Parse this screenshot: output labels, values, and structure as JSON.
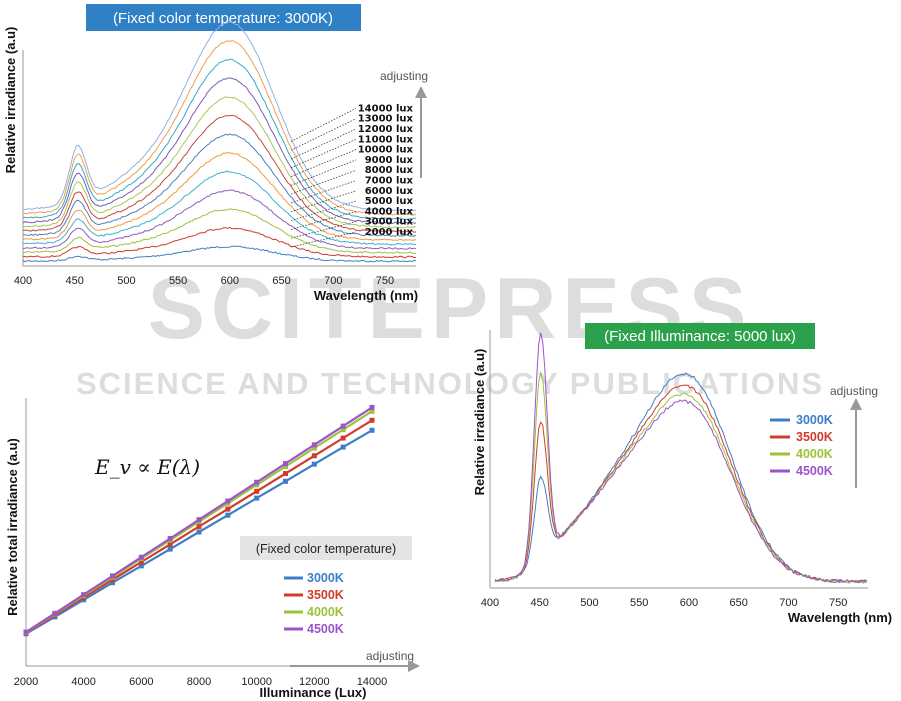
{
  "watermark": {
    "line1": "SCITEPRESS",
    "line2": "SCIENCE AND TECHNOLOGY PUBLICATIONS"
  },
  "colors": {
    "3000K": "#3c7fc7",
    "3500K": "#d03b2c",
    "4000K": "#9cc23a",
    "4500K": "#9b55c8",
    "banner_blue": "#2f80c5",
    "banner_green": "#2ca14c"
  },
  "icons": {
    "adjusting_arrow": "up-arrow-icon / right-arrow-icon"
  },
  "chart_data": [
    {
      "type": "line",
      "title": "(Fixed color temperature: 3000K)",
      "xlabel": "Wavelength (nm)",
      "ylabel": "Relative irradiance (a.u)",
      "xlim": [
        400,
        780
      ],
      "x_ticks": [
        "400",
        "450",
        "500",
        "550",
        "600",
        "650",
        "700",
        "750"
      ],
      "annotation": "adjusting",
      "series": [
        {
          "name": "2000 lux",
          "peak": 1
        },
        {
          "name": "3000 lux",
          "peak": 2
        },
        {
          "name": "4000 lux",
          "peak": 3
        },
        {
          "name": "5000 lux",
          "peak": 4
        },
        {
          "name": "6000 lux",
          "peak": 5
        },
        {
          "name": "7000 lux",
          "peak": 6
        },
        {
          "name": "8000 lux",
          "peak": 7
        },
        {
          "name": "9000 lux",
          "peak": 8
        },
        {
          "name": "10000 lux",
          "peak": 9
        },
        {
          "name": "11000 lux",
          "peak": 10
        },
        {
          "name": "12000 lux",
          "peak": 11
        },
        {
          "name": "13000 lux",
          "peak": 12
        },
        {
          "name": "14000 lux",
          "peak": 13
        }
      ],
      "grid": false
    },
    {
      "type": "line",
      "title": "",
      "xlabel": "Illuminance (Lux)",
      "ylabel": "Relative total irradiance (a.u)",
      "xlim": [
        2000,
        14000
      ],
      "x_ticks": [
        "2000",
        "4000",
        "6000",
        "8000",
        "10000",
        "12000",
        "14000"
      ],
      "annotation": "adjusting",
      "equation": "E_v ∝ E(λ)",
      "box_label": "(Fixed color temperature)",
      "x": [
        2000,
        3000,
        4000,
        5000,
        6000,
        7000,
        8000,
        9000,
        10000,
        11000,
        12000,
        13000,
        14000
      ],
      "series": [
        {
          "name": "3000K",
          "values": [
            1.0,
            1.52,
            2.05,
            2.58,
            3.1,
            3.62,
            4.15,
            4.67,
            5.2,
            5.72,
            6.25,
            6.78,
            7.3
          ]
        },
        {
          "name": "3500K",
          "values": [
            1.02,
            1.57,
            2.12,
            2.67,
            3.22,
            3.77,
            4.32,
            4.86,
            5.41,
            5.96,
            6.51,
            7.06,
            7.61
          ]
        },
        {
          "name": "4000K",
          "values": [
            1.04,
            1.61,
            2.18,
            2.75,
            3.33,
            3.9,
            4.47,
            5.04,
            5.61,
            6.18,
            6.75,
            7.32,
            7.89
          ]
        },
        {
          "name": "4500K",
          "values": [
            1.05,
            1.63,
            2.21,
            2.79,
            3.37,
            3.95,
            4.53,
            5.11,
            5.69,
            6.27,
            6.85,
            7.43,
            8.01
          ]
        }
      ],
      "grid": false
    },
    {
      "type": "line",
      "title": "(Fixed Illuminance: 5000 lux)",
      "xlabel": "Wavelength (nm)",
      "ylabel": "Relative irradiance (a.u)",
      "xlim": [
        400,
        780
      ],
      "x_ticks": [
        "400",
        "450",
        "500",
        "550",
        "600",
        "650",
        "700",
        "750"
      ],
      "annotation": "adjusting",
      "series": [
        {
          "name": "3000K",
          "blue_peak": 0.36,
          "red_peak": 0.86
        },
        {
          "name": "3500K",
          "blue_peak": 0.6,
          "red_peak": 0.81
        },
        {
          "name": "4000K",
          "blue_peak": 0.81,
          "red_peak": 0.77
        },
        {
          "name": "4500K",
          "blue_peak": 0.98,
          "red_peak": 0.74
        }
      ],
      "grid": false
    }
  ]
}
